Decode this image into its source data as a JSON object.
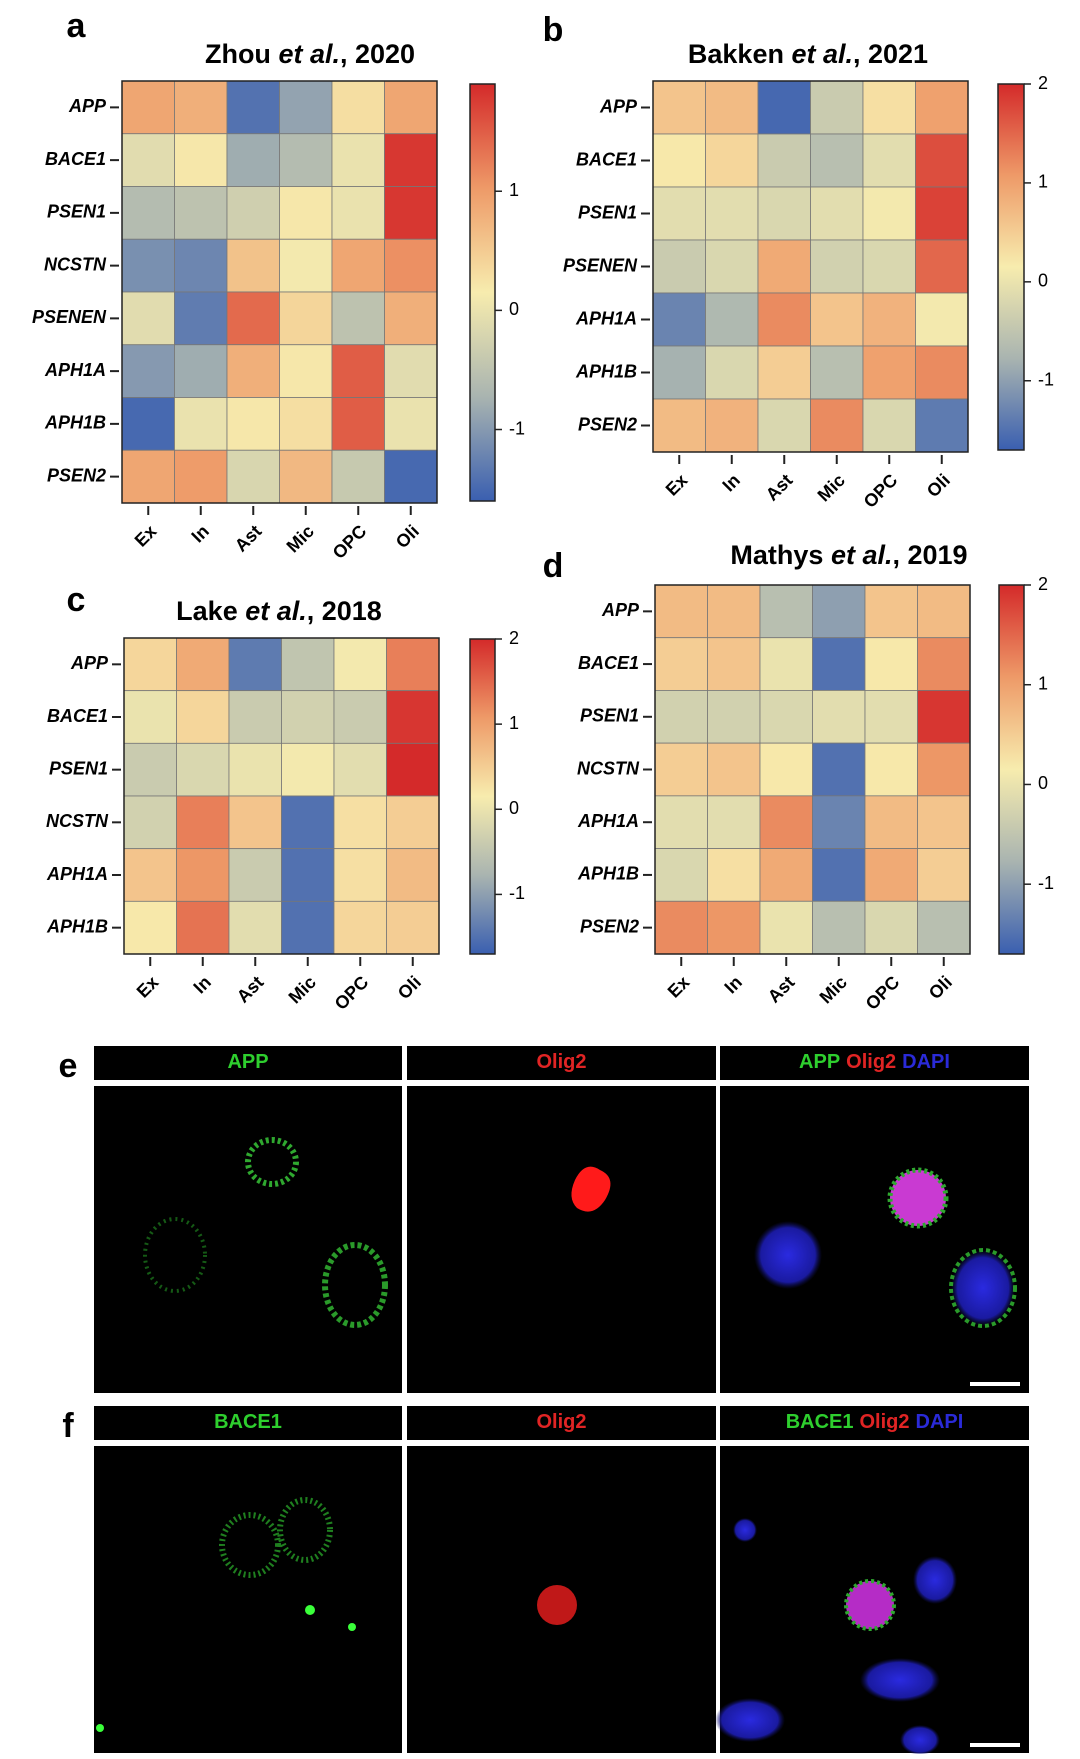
{
  "chart_data": [
    {
      "type": "heatmap",
      "label": "a",
      "title": [
        {
          "text": "Zhou "
        },
        {
          "text": "et al.",
          "italic": true
        },
        {
          "text": ", 2020"
        }
      ],
      "categories": [
        "Ex",
        "In",
        "Ast",
        "Mic",
        "OPC",
        "Oli"
      ],
      "rows": [
        "APP",
        "BACE1",
        "PSEN1",
        "NCSTN",
        "PSENEN",
        "APH1A",
        "APH1B",
        "PSEN2"
      ],
      "values": [
        [
          0.9,
          0.8,
          -1.4,
          -0.9,
          0.3,
          0.9
        ],
        [
          -0.1,
          0.2,
          -0.8,
          -0.6,
          0.0,
          1.8
        ],
        [
          -0.6,
          -0.5,
          -0.3,
          0.2,
          0.0,
          1.8
        ],
        [
          -1.1,
          -1.2,
          0.6,
          0.1,
          0.9,
          1.1
        ],
        [
          -0.1,
          -1.3,
          1.4,
          0.4,
          -0.5,
          0.8
        ],
        [
          -1.0,
          -0.8,
          0.8,
          0.2,
          1.5,
          -0.1
        ],
        [
          -1.5,
          0.0,
          0.2,
          0.3,
          1.5,
          0.0
        ],
        [
          0.9,
          1.0,
          -0.2,
          0.7,
          -0.4,
          -1.5
        ]
      ],
      "zlim": [
        -1.6,
        1.9
      ],
      "zticks": [
        -1,
        0,
        1
      ],
      "colormap": [
        "#3a5fb0",
        "#a9b4b0",
        "#f7ecae",
        "#ee9a68",
        "#d42a2a"
      ]
    },
    {
      "type": "heatmap",
      "label": "b",
      "title": [
        {
          "text": "Bakken "
        },
        {
          "text": "et al.",
          "italic": true
        },
        {
          "text": ", 2021"
        }
      ],
      "categories": [
        "Ex",
        "In",
        "Ast",
        "Mic",
        "OPC",
        "Oli"
      ],
      "rows": [
        "APP",
        "BACE1",
        "PSEN1",
        "PSENEN",
        "APH1A",
        "APH1B",
        "PSEN2"
      ],
      "values": [
        [
          0.6,
          0.7,
          -1.6,
          -0.4,
          0.3,
          1.0
        ],
        [
          0.2,
          0.4,
          -0.4,
          -0.6,
          -0.1,
          1.7
        ],
        [
          -0.1,
          -0.1,
          -0.2,
          -0.1,
          0.1,
          1.8
        ],
        [
          -0.4,
          -0.2,
          0.9,
          -0.3,
          -0.2,
          1.5
        ],
        [
          -1.3,
          -0.7,
          1.2,
          0.6,
          0.8,
          0.1
        ],
        [
          -0.8,
          -0.2,
          0.5,
          -0.6,
          1.0,
          1.2
        ],
        [
          0.7,
          0.8,
          -0.2,
          1.2,
          -0.2,
          -1.4
        ]
      ],
      "zlim": [
        -1.7,
        2.0
      ],
      "zticks": [
        -1,
        0,
        1,
        2
      ],
      "colormap": [
        "#3a5fb0",
        "#a9b4b0",
        "#f7ecae",
        "#ee9a68",
        "#d42a2a"
      ]
    },
    {
      "type": "heatmap",
      "label": "c",
      "title": [
        {
          "text": "Lake "
        },
        {
          "text": "et al.",
          "italic": true
        },
        {
          "text": ", 2018"
        }
      ],
      "categories": [
        "Ex",
        "In",
        "Ast",
        "Mic",
        "OPC",
        "Oli"
      ],
      "rows": [
        "APP",
        "BACE1",
        "PSEN1",
        "NCSTN",
        "APH1A",
        "APH1B"
      ],
      "values": [
        [
          0.4,
          0.9,
          -1.4,
          -0.5,
          0.1,
          1.3
        ],
        [
          0.0,
          0.4,
          -0.4,
          -0.3,
          -0.4,
          1.9
        ],
        [
          -0.4,
          -0.2,
          0.0,
          0.1,
          -0.1,
          2.0
        ],
        [
          -0.3,
          1.3,
          0.6,
          -1.5,
          0.3,
          0.5
        ],
        [
          0.6,
          1.1,
          -0.4,
          -1.5,
          0.3,
          0.7
        ],
        [
          0.2,
          1.4,
          -0.1,
          -1.5,
          0.4,
          0.5
        ]
      ],
      "zlim": [
        -1.7,
        2.0
      ],
      "zticks": [
        -1,
        0,
        1,
        2
      ],
      "colormap": [
        "#3a5fb0",
        "#a9b4b0",
        "#f7ecae",
        "#ee9a68",
        "#d42a2a"
      ]
    },
    {
      "type": "heatmap",
      "label": "d",
      "title": [
        {
          "text": "Mathys "
        },
        {
          "text": "et al.",
          "italic": true
        },
        {
          "text": ", 2019"
        }
      ],
      "categories": [
        "Ex",
        "In",
        "Ast",
        "Mic",
        "OPC",
        "Oli"
      ],
      "rows": [
        "APP",
        "BACE1",
        "PSEN1",
        "NCSTN",
        "APH1A",
        "APH1B",
        "PSEN2"
      ],
      "values": [
        [
          0.7,
          0.7,
          -0.6,
          -1.0,
          0.6,
          0.7
        ],
        [
          0.5,
          0.6,
          0.0,
          -1.5,
          0.2,
          1.2
        ],
        [
          -0.3,
          -0.3,
          -0.2,
          -0.1,
          -0.1,
          1.9
        ],
        [
          0.5,
          0.6,
          0.2,
          -1.5,
          0.2,
          1.1
        ],
        [
          -0.1,
          -0.1,
          1.2,
          -1.3,
          0.7,
          0.6
        ],
        [
          -0.2,
          0.3,
          0.9,
          -1.5,
          0.9,
          0.5
        ],
        [
          1.2,
          1.1,
          0.0,
          -0.6,
          -0.2,
          -0.6
        ]
      ],
      "zlim": [
        -1.7,
        2.0
      ],
      "zticks": [
        -1,
        0,
        1,
        2
      ],
      "colormap": [
        "#3a5fb0",
        "#a9b4b0",
        "#f7ecae",
        "#ee9a68",
        "#d42a2a"
      ]
    }
  ],
  "micrographs": [
    {
      "label": "e",
      "headers": [
        [
          {
            "text": "APP",
            "color": "#2ecf2e"
          }
        ],
        [
          {
            "text": "Olig2",
            "color": "#e02424"
          }
        ],
        [
          {
            "text": "APP",
            "color": "#2ecf2e"
          },
          {
            "text": "Olig2",
            "color": "#e02424"
          },
          {
            "text": "DAPI",
            "color": "#2a2ad8"
          }
        ]
      ]
    },
    {
      "label": "f",
      "headers": [
        [
          {
            "text": "BACE1",
            "color": "#2ecf2e"
          }
        ],
        [
          {
            "text": "Olig2",
            "color": "#e02424"
          }
        ],
        [
          {
            "text": "BACE1",
            "color": "#2ecf2e"
          },
          {
            "text": "Olig2",
            "color": "#e02424"
          },
          {
            "text": "DAPI",
            "color": "#2a2ad8"
          }
        ]
      ]
    }
  ]
}
